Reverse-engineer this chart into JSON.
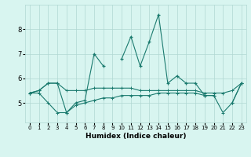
{
  "xlabel": "Humidex (Indice chaleur)",
  "x": [
    0,
    1,
    2,
    3,
    4,
    5,
    6,
    7,
    8,
    9,
    10,
    11,
    12,
    13,
    14,
    15,
    16,
    17,
    18,
    19,
    20,
    21,
    22,
    23
  ],
  "line1": [
    5.4,
    5.5,
    5.8,
    5.8,
    4.6,
    5.0,
    5.1,
    7.0,
    6.5,
    null,
    6.8,
    7.7,
    6.5,
    7.5,
    8.6,
    5.8,
    6.1,
    5.8,
    5.8,
    5.3,
    5.3,
    null,
    5.0,
    5.8
  ],
  "line_min": [
    5.4,
    5.4,
    5.0,
    4.6,
    4.6,
    4.9,
    5.0,
    5.1,
    5.2,
    5.2,
    5.3,
    5.3,
    5.3,
    5.3,
    5.4,
    5.4,
    5.4,
    5.4,
    5.4,
    5.3,
    5.3,
    4.6,
    5.0,
    5.8
  ],
  "line_max": [
    5.4,
    5.5,
    5.8,
    5.8,
    5.5,
    5.5,
    5.5,
    5.6,
    5.6,
    5.6,
    5.6,
    5.6,
    5.5,
    5.5,
    5.5,
    5.5,
    5.5,
    5.5,
    5.5,
    5.4,
    5.4,
    5.4,
    5.5,
    5.8
  ],
  "line_color": "#1a7a6e",
  "bg_color": "#d8f5f0",
  "grid_color": "#b0d8d2",
  "ylim": [
    4.2,
    9.0
  ],
  "yticks": [
    5,
    6,
    7,
    8
  ],
  "xlim": [
    -0.5,
    23.5
  ]
}
